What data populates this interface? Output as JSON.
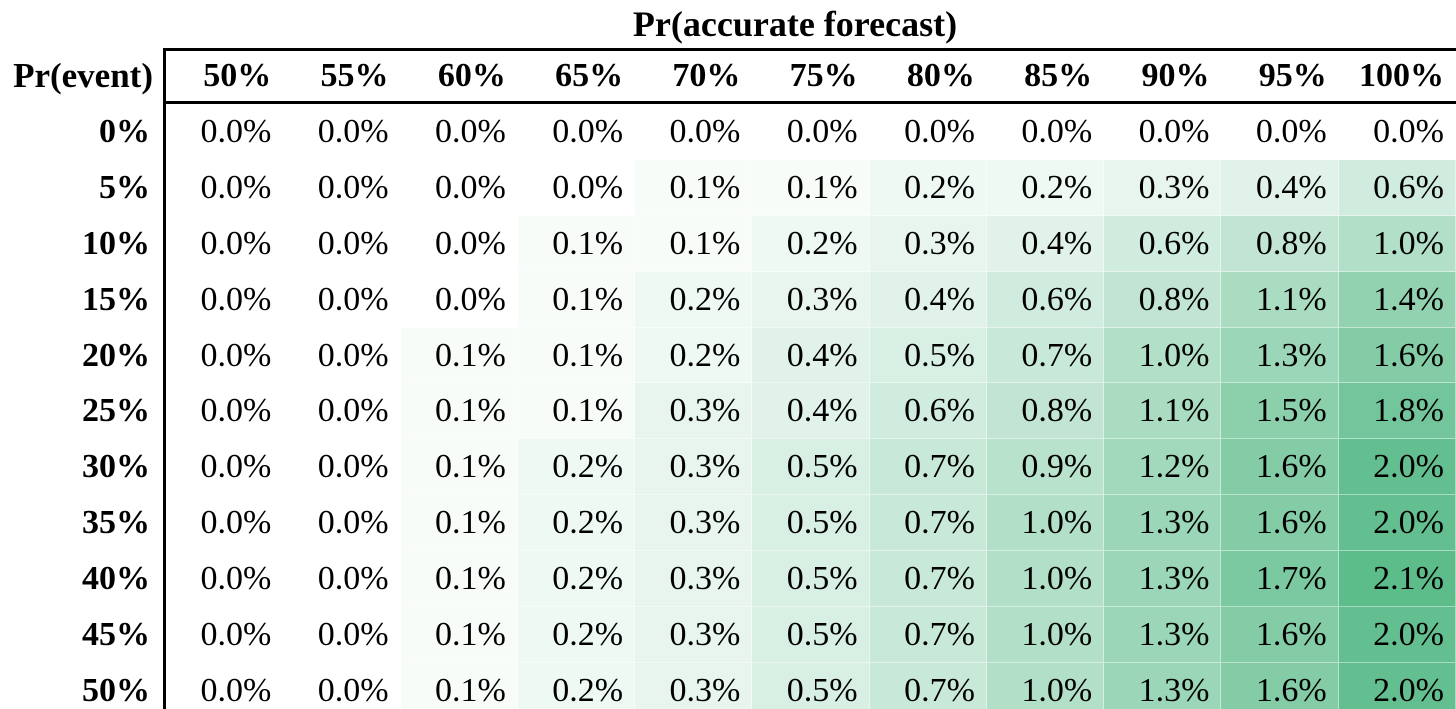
{
  "chart_data": {
    "type": "heatmap",
    "title": "Pr(accurate forecast)",
    "row_axis_label": "Pr(event)",
    "col_axis_label": "Pr(accurate forecast)",
    "columns": [
      "50%",
      "55%",
      "60%",
      "65%",
      "70%",
      "75%",
      "80%",
      "85%",
      "90%",
      "95%",
      "100%"
    ],
    "rows": [
      "0%",
      "5%",
      "10%",
      "15%",
      "20%",
      "25%",
      "30%",
      "35%",
      "40%",
      "45%",
      "50%"
    ],
    "values_pct": [
      [
        0.0,
        0.0,
        0.0,
        0.0,
        0.0,
        0.0,
        0.0,
        0.0,
        0.0,
        0.0,
        0.0
      ],
      [
        0.0,
        0.0,
        0.0,
        0.0,
        0.1,
        0.1,
        0.2,
        0.2,
        0.3,
        0.4,
        0.6
      ],
      [
        0.0,
        0.0,
        0.0,
        0.1,
        0.1,
        0.2,
        0.3,
        0.4,
        0.6,
        0.8,
        1.0
      ],
      [
        0.0,
        0.0,
        0.0,
        0.1,
        0.2,
        0.3,
        0.4,
        0.6,
        0.8,
        1.1,
        1.4
      ],
      [
        0.0,
        0.0,
        0.1,
        0.1,
        0.2,
        0.4,
        0.5,
        0.7,
        1.0,
        1.3,
        1.6
      ],
      [
        0.0,
        0.0,
        0.1,
        0.1,
        0.3,
        0.4,
        0.6,
        0.8,
        1.1,
        1.5,
        1.8
      ],
      [
        0.0,
        0.0,
        0.1,
        0.2,
        0.3,
        0.5,
        0.7,
        0.9,
        1.2,
        1.6,
        2.0
      ],
      [
        0.0,
        0.0,
        0.1,
        0.2,
        0.3,
        0.5,
        0.7,
        1.0,
        1.3,
        1.6,
        2.0
      ],
      [
        0.0,
        0.0,
        0.1,
        0.2,
        0.3,
        0.5,
        0.7,
        1.0,
        1.3,
        1.7,
        2.1
      ],
      [
        0.0,
        0.0,
        0.1,
        0.2,
        0.3,
        0.5,
        0.7,
        1.0,
        1.3,
        1.6,
        2.0
      ],
      [
        0.0,
        0.0,
        0.1,
        0.2,
        0.3,
        0.5,
        0.7,
        1.0,
        1.3,
        1.6,
        2.0
      ]
    ],
    "value_suffix": "%",
    "value_decimals": 1,
    "colorscale": {
      "min_value": 0,
      "max_value": 2.1,
      "min_color": "#FFFFFF",
      "max_color": "#5CBC8A"
    },
    "legend": "none",
    "grid": false,
    "border_color": "#000000",
    "text_color": "#000000"
  }
}
